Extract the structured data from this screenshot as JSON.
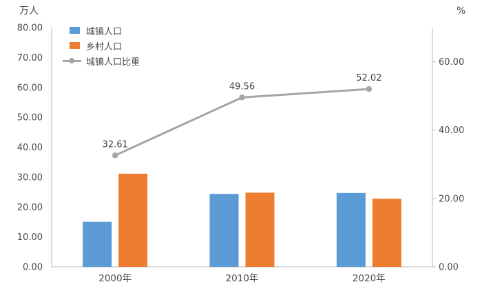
{
  "chart_data": {
    "type": "bar",
    "subtype": "grouped-bars-with-line-combo",
    "title": "",
    "categories": [
      "2000年",
      "2010年",
      "2020年"
    ],
    "series": [
      {
        "name": "城镇人口",
        "type": "bar",
        "axis": "left",
        "color": "#5B9BD5",
        "values": [
          15.07,
          24.39,
          24.71
        ]
      },
      {
        "name": "乡村人口",
        "type": "bar",
        "axis": "left",
        "color": "#ED7D31",
        "values": [
          31.15,
          24.81,
          22.79
        ]
      },
      {
        "name": "城镇人口比重",
        "type": "line",
        "axis": "right",
        "color": "#A5A5A5",
        "values": [
          32.61,
          49.56,
          52.02
        ],
        "labels": [
          "32.61",
          "49.56",
          "52.02"
        ]
      }
    ],
    "left_axis": {
      "label": "万人",
      "min": 0,
      "max": 80,
      "tick_step": 10,
      "ticks": [
        "0.00",
        "10.00",
        "20.00",
        "30.00",
        "40.00",
        "50.00",
        "60.00",
        "70.00",
        "80.00"
      ]
    },
    "right_axis": {
      "label": "%",
      "min": 0,
      "max": 70,
      "tick_step": 20,
      "ticks": [
        "0.00",
        "20.00",
        "40.00",
        "60.00"
      ]
    },
    "legend_position": "top-left",
    "grid": false,
    "text_color": "#4a4a4a",
    "data_label_color": "#404040",
    "axis_line_color": "#C9C9C9"
  }
}
